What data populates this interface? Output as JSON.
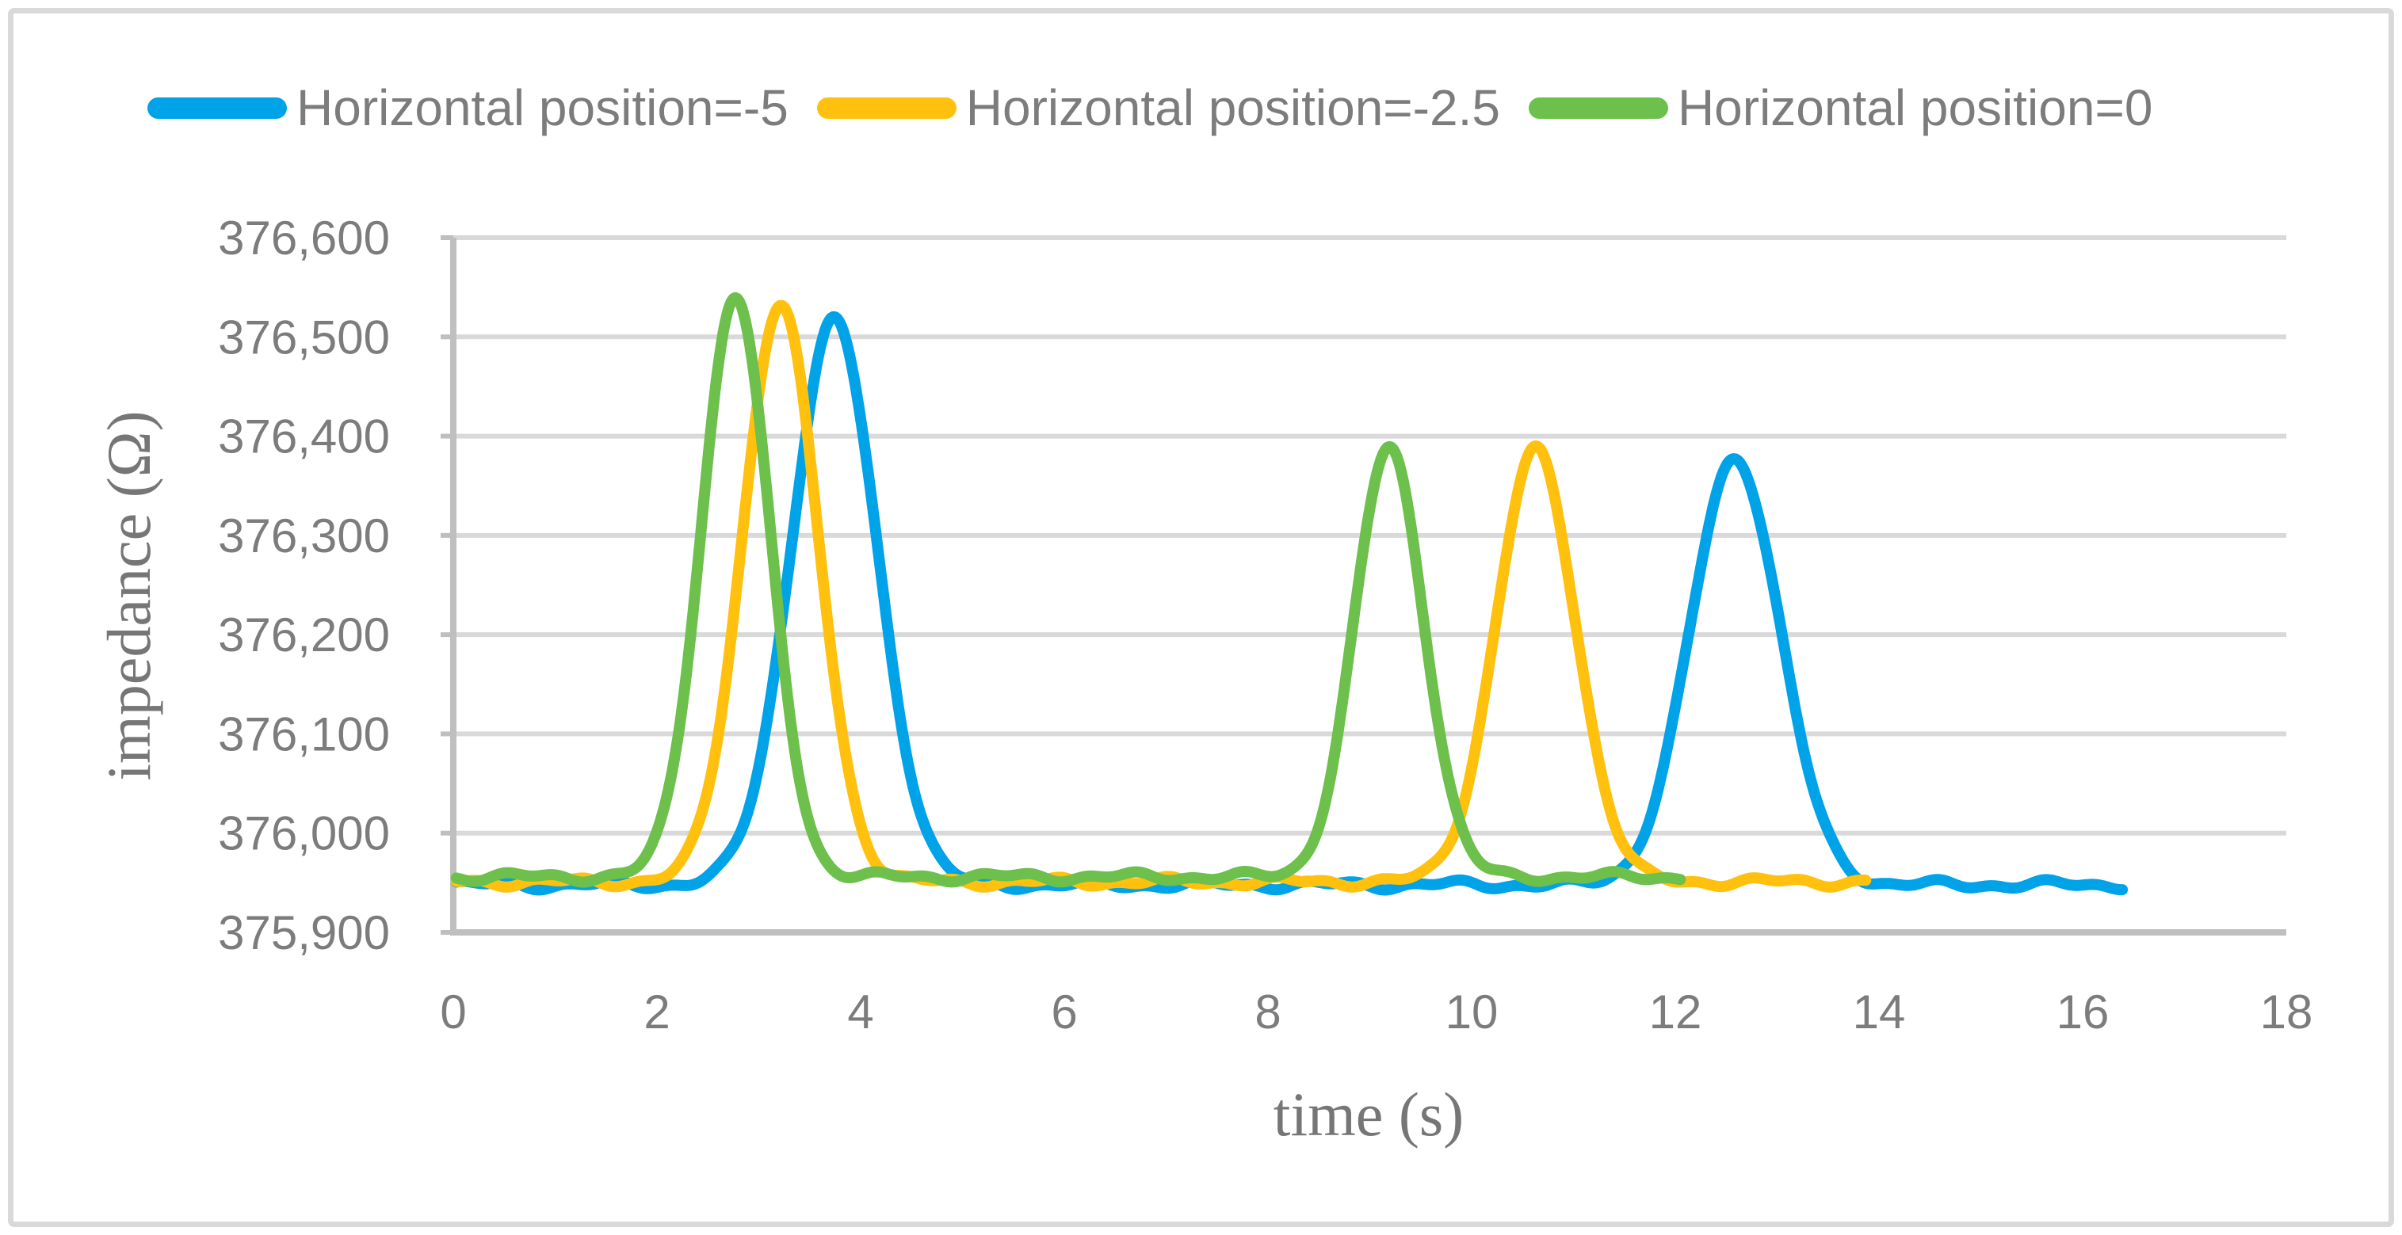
{
  "chart_data": {
    "type": "line",
    "title": "",
    "legend_position": "top",
    "grid": "horizontal",
    "colors": {
      "gridline": "#d9d9d9",
      "axis_line": "#bfbfbf",
      "tick_text": "#7c7c7c",
      "title_text": "#767676",
      "frame_border": "#d9d9d9"
    },
    "x_axis": {
      "label": "time (s)",
      "min": 0,
      "max": 18,
      "tick_step": 2,
      "ticks": [
        {
          "value": 0,
          "label": "0"
        },
        {
          "value": 2,
          "label": "2"
        },
        {
          "value": 4,
          "label": "4"
        },
        {
          "value": 6,
          "label": "6"
        },
        {
          "value": 8,
          "label": "8"
        },
        {
          "value": 10,
          "label": "10"
        },
        {
          "value": 12,
          "label": "12"
        },
        {
          "value": 14,
          "label": "14"
        },
        {
          "value": 16,
          "label": "16"
        },
        {
          "value": 18,
          "label": "18"
        }
      ]
    },
    "y_axis": {
      "label": "impedance (Ω)",
      "min": 375900,
      "max": 376600,
      "tick_step": 100,
      "ticks": [
        {
          "value": 375900,
          "label": "375,900"
        },
        {
          "value": 376000,
          "label": "376,000"
        },
        {
          "value": 376100,
          "label": "376,100"
        },
        {
          "value": 376200,
          "label": "376,200"
        },
        {
          "value": 376300,
          "label": "376,300"
        },
        {
          "value": 376400,
          "label": "376,400"
        },
        {
          "value": 376500,
          "label": "376,500"
        },
        {
          "value": 376600,
          "label": "376,600"
        }
      ]
    },
    "series": [
      {
        "name": "Horizontal position=-5",
        "color": "#00a2e8",
        "baseline": 375948,
        "t_start": 0.03,
        "t_end": 16.4,
        "noise_phase": 0.0,
        "peaks": [
          {
            "t": 3.74,
            "value": 376516,
            "sigma": 0.42
          },
          {
            "t": 12.59,
            "value": 376378,
            "sigma": 0.44
          }
        ]
      },
      {
        "name": "Horizontal position=-2.5",
        "color": "#ffc10e",
        "baseline": 375951,
        "t_start": 0.03,
        "t_end": 13.88,
        "noise_phase": 2.1,
        "peaks": [
          {
            "t": 3.21,
            "value": 376532,
            "sigma": 0.37
          },
          {
            "t": 10.63,
            "value": 376385,
            "sigma": 0.39
          }
        ]
      },
      {
        "name": "Horizontal position=0",
        "color": "#6cc04b",
        "baseline": 375956,
        "t_start": 0.03,
        "t_end": 12.05,
        "noise_phase": 4.2,
        "peaks": [
          {
            "t": 2.77,
            "value": 376541,
            "sigma": 0.335
          },
          {
            "t": 9.19,
            "value": 376388,
            "sigma": 0.34
          }
        ]
      }
    ]
  }
}
